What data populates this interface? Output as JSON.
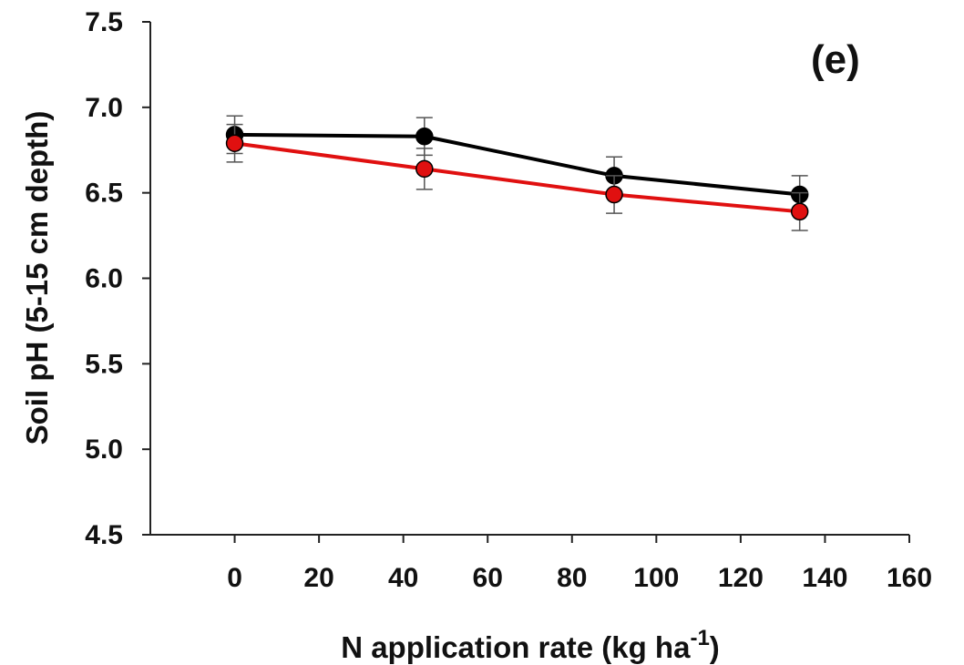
{
  "chart_data": {
    "type": "line",
    "panel_label": "(e)",
    "xlabel": "N application rate (kg ha",
    "xlabel_superscript": "-1",
    "xlabel_suffix": ")",
    "ylabel": "Soil pH (5-15 cm depth)",
    "xlim": [
      -20,
      160
    ],
    "ylim": [
      4.5,
      7.5
    ],
    "x_ticks": [
      0,
      20,
      40,
      60,
      80,
      100,
      120,
      140,
      160
    ],
    "x_tick_labels": [
      "0",
      "20",
      "40",
      "60",
      "80",
      "100",
      "120",
      "140",
      "160"
    ],
    "y_ticks": [
      4.5,
      5.0,
      5.5,
      6.0,
      6.5,
      7.0,
      7.5
    ],
    "y_tick_labels": [
      "4.5",
      "5.0",
      "5.5",
      "6.0",
      "6.5",
      "7.0",
      "7.5"
    ],
    "grid": false,
    "legend": "none",
    "series": [
      {
        "color": "#000000",
        "x": [
          0,
          45,
          90,
          134
        ],
        "y": [
          6.84,
          6.83,
          6.6,
          6.49
        ],
        "error": [
          0.11,
          0.11,
          0.11,
          0.11
        ]
      },
      {
        "color": "#e01010",
        "x": [
          0,
          45,
          90,
          134
        ],
        "y": [
          6.79,
          6.64,
          6.49,
          6.39
        ],
        "error": [
          0.11,
          0.12,
          0.11,
          0.11
        ]
      }
    ]
  }
}
